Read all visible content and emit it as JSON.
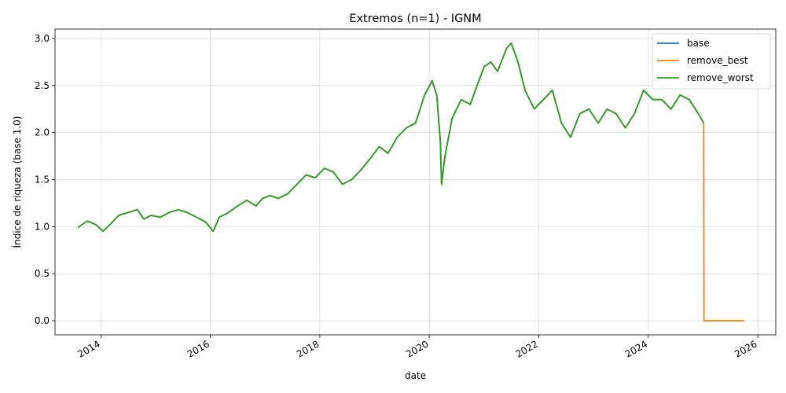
{
  "chart_data": {
    "type": "line",
    "title": "Extremos (n=1) - IGNM",
    "xlabel": "date",
    "ylabel": "Índice de riqueza (base 1.0)",
    "xlim": [
      "2013-03-01",
      "2026-05-01"
    ],
    "ylim": [
      -0.15,
      3.1
    ],
    "x_ticks": [
      "2014",
      "2016",
      "2018",
      "2020",
      "2022",
      "2024",
      "2026"
    ],
    "y_ticks": [
      "0.0",
      "0.5",
      "1.0",
      "1.5",
      "2.0",
      "2.5",
      "3.0"
    ],
    "grid": true,
    "legend_position": "top-right",
    "colors": {
      "base": "#1f77b4",
      "remove_best": "#ff7f0e",
      "remove_worst": "#2ca02c"
    },
    "series": [
      {
        "name": "base",
        "x": [
          "2013-08-01",
          "2013-10-01",
          "2013-12-01",
          "2014-01-15",
          "2014-03-01",
          "2014-05-01",
          "2014-07-01",
          "2014-09-01",
          "2014-10-15",
          "2014-12-01",
          "2015-02-01",
          "2015-04-01",
          "2015-06-01",
          "2015-08-01",
          "2015-10-01",
          "2015-12-01",
          "2016-01-20",
          "2016-03-01",
          "2016-05-01",
          "2016-07-01",
          "2016-09-01",
          "2016-11-01",
          "2016-12-15",
          "2017-02-01",
          "2017-04-01",
          "2017-06-01",
          "2017-08-01",
          "2017-10-01",
          "2017-12-01",
          "2018-02-01",
          "2018-04-01",
          "2018-06-01",
          "2018-08-01",
          "2018-10-01",
          "2018-12-01",
          "2019-02-01",
          "2019-04-01",
          "2019-06-01",
          "2019-08-01",
          "2019-10-01",
          "2019-12-01",
          "2020-01-20",
          "2020-02-20",
          "2020-03-15",
          "2020-03-23",
          "2020-04-15",
          "2020-06-01",
          "2020-08-01",
          "2020-10-01",
          "2020-11-15",
          "2021-01-01",
          "2021-02-15",
          "2021-04-01",
          "2021-06-01",
          "2021-07-01",
          "2021-08-15",
          "2021-10-01",
          "2021-12-01",
          "2022-02-01",
          "2022-04-01",
          "2022-06-01",
          "2022-08-01",
          "2022-10-01",
          "2022-12-01",
          "2023-02-01",
          "2023-04-01",
          "2023-06-01",
          "2023-08-01",
          "2023-10-01",
          "2023-12-01",
          "2024-02-01",
          "2024-04-01",
          "2024-06-01",
          "2024-08-01",
          "2024-10-01",
          "2024-12-01",
          "2025-01-05"
        ],
        "y": [
          0.99,
          1.06,
          1.02,
          0.95,
          1.02,
          1.12,
          1.15,
          1.18,
          1.08,
          1.12,
          1.1,
          1.15,
          1.18,
          1.15,
          1.1,
          1.05,
          0.95,
          1.1,
          1.15,
          1.22,
          1.28,
          1.22,
          1.3,
          1.33,
          1.3,
          1.35,
          1.45,
          1.55,
          1.52,
          1.62,
          1.58,
          1.45,
          1.5,
          1.6,
          1.72,
          1.85,
          1.78,
          1.95,
          2.05,
          2.1,
          2.4,
          2.55,
          2.4,
          1.9,
          1.45,
          1.75,
          2.15,
          2.35,
          2.3,
          2.5,
          2.7,
          2.75,
          2.65,
          2.9,
          2.95,
          2.75,
          2.45,
          2.25,
          2.35,
          2.45,
          2.1,
          1.95,
          2.2,
          2.25,
          2.1,
          2.25,
          2.2,
          2.05,
          2.2,
          2.45,
          2.35,
          2.35,
          2.25,
          2.4,
          2.35,
          2.2,
          2.1
        ]
      },
      {
        "name": "remove_best",
        "x": [
          "2013-08-01",
          "2013-10-01",
          "2013-12-01",
          "2014-01-15",
          "2014-03-01",
          "2014-05-01",
          "2014-07-01",
          "2014-09-01",
          "2014-10-15",
          "2014-12-01",
          "2015-02-01",
          "2015-04-01",
          "2015-06-01",
          "2015-08-01",
          "2015-10-01",
          "2015-12-01",
          "2016-01-20",
          "2016-03-01",
          "2016-05-01",
          "2016-07-01",
          "2016-09-01",
          "2016-11-01",
          "2016-12-15",
          "2017-02-01",
          "2017-04-01",
          "2017-06-01",
          "2017-08-01",
          "2017-10-01",
          "2017-12-01",
          "2018-02-01",
          "2018-04-01",
          "2018-06-01",
          "2018-08-01",
          "2018-10-01",
          "2018-12-01",
          "2019-02-01",
          "2019-04-01",
          "2019-06-01",
          "2019-08-01",
          "2019-10-01",
          "2019-12-01",
          "2020-01-20",
          "2020-02-20",
          "2020-03-15",
          "2020-03-23",
          "2020-04-15",
          "2020-06-01",
          "2020-08-01",
          "2020-10-01",
          "2020-11-15",
          "2021-01-01",
          "2021-02-15",
          "2021-04-01",
          "2021-06-01",
          "2021-07-01",
          "2021-08-15",
          "2021-10-01",
          "2021-12-01",
          "2022-02-01",
          "2022-04-01",
          "2022-06-01",
          "2022-08-01",
          "2022-10-01",
          "2022-12-01",
          "2023-02-01",
          "2023-04-01",
          "2023-06-01",
          "2023-08-01",
          "2023-10-01",
          "2023-12-01",
          "2024-02-01",
          "2024-04-01",
          "2024-06-01",
          "2024-08-01",
          "2024-10-01",
          "2024-12-01",
          "2025-01-05",
          "2025-01-07",
          "2025-10-01"
        ],
        "y": [
          0.99,
          1.06,
          1.02,
          0.95,
          1.02,
          1.12,
          1.15,
          1.18,
          1.08,
          1.12,
          1.1,
          1.15,
          1.18,
          1.15,
          1.1,
          1.05,
          0.95,
          1.1,
          1.15,
          1.22,
          1.28,
          1.22,
          1.3,
          1.33,
          1.3,
          1.35,
          1.45,
          1.55,
          1.52,
          1.62,
          1.58,
          1.45,
          1.5,
          1.6,
          1.72,
          1.85,
          1.78,
          1.95,
          2.05,
          2.1,
          2.4,
          2.55,
          2.4,
          1.9,
          1.45,
          1.75,
          2.15,
          2.35,
          2.3,
          2.5,
          2.7,
          2.75,
          2.65,
          2.9,
          2.95,
          2.75,
          2.45,
          2.25,
          2.35,
          2.45,
          2.1,
          1.95,
          2.2,
          2.25,
          2.1,
          2.25,
          2.2,
          2.05,
          2.2,
          2.45,
          2.35,
          2.35,
          2.25,
          2.4,
          2.35,
          2.2,
          2.1,
          0.0,
          0.0
        ]
      },
      {
        "name": "remove_worst",
        "x": [
          "2013-08-01",
          "2013-10-01",
          "2013-12-01",
          "2014-01-15",
          "2014-03-01",
          "2014-05-01",
          "2014-07-01",
          "2014-09-01",
          "2014-10-15",
          "2014-12-01",
          "2015-02-01",
          "2015-04-01",
          "2015-06-01",
          "2015-08-01",
          "2015-10-01",
          "2015-12-01",
          "2016-01-20",
          "2016-03-01",
          "2016-05-01",
          "2016-07-01",
          "2016-09-01",
          "2016-11-01",
          "2016-12-15",
          "2017-02-01",
          "2017-04-01",
          "2017-06-01",
          "2017-08-01",
          "2017-10-01",
          "2017-12-01",
          "2018-02-01",
          "2018-04-01",
          "2018-06-01",
          "2018-08-01",
          "2018-10-01",
          "2018-12-01",
          "2019-02-01",
          "2019-04-01",
          "2019-06-01",
          "2019-08-01",
          "2019-10-01",
          "2019-12-01",
          "2020-01-20",
          "2020-02-20",
          "2020-03-15",
          "2020-03-23",
          "2020-04-15",
          "2020-06-01",
          "2020-08-01",
          "2020-10-01",
          "2020-11-15",
          "2021-01-01",
          "2021-02-15",
          "2021-04-01",
          "2021-06-01",
          "2021-07-01",
          "2021-08-15",
          "2021-10-01",
          "2021-12-01",
          "2022-02-01",
          "2022-04-01",
          "2022-06-01",
          "2022-08-01",
          "2022-10-01",
          "2022-12-01",
          "2023-02-01",
          "2023-04-01",
          "2023-06-01",
          "2023-08-01",
          "2023-10-01",
          "2023-12-01",
          "2024-02-01",
          "2024-04-01",
          "2024-06-01",
          "2024-08-01",
          "2024-10-01",
          "2024-12-01",
          "2025-01-05"
        ],
        "y": [
          0.99,
          1.06,
          1.02,
          0.95,
          1.02,
          1.12,
          1.15,
          1.18,
          1.08,
          1.12,
          1.1,
          1.15,
          1.18,
          1.15,
          1.1,
          1.05,
          0.95,
          1.1,
          1.15,
          1.22,
          1.28,
          1.22,
          1.3,
          1.33,
          1.3,
          1.35,
          1.45,
          1.55,
          1.52,
          1.62,
          1.58,
          1.45,
          1.5,
          1.6,
          1.72,
          1.85,
          1.78,
          1.95,
          2.05,
          2.1,
          2.4,
          2.55,
          2.4,
          1.9,
          1.45,
          1.75,
          2.15,
          2.35,
          2.3,
          2.5,
          2.7,
          2.75,
          2.65,
          2.9,
          2.95,
          2.75,
          2.45,
          2.25,
          2.35,
          2.45,
          2.1,
          1.95,
          2.2,
          2.25,
          2.1,
          2.25,
          2.2,
          2.05,
          2.2,
          2.45,
          2.35,
          2.35,
          2.25,
          2.4,
          2.35,
          2.2,
          2.1
        ]
      }
    ]
  }
}
